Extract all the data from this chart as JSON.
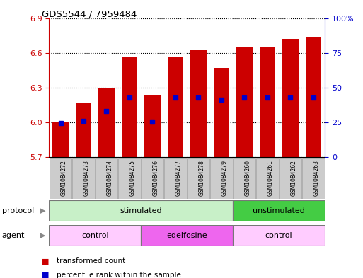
{
  "title": "GDS5544 / 7959484",
  "samples": [
    "GSM1084272",
    "GSM1084273",
    "GSM1084274",
    "GSM1084275",
    "GSM1084276",
    "GSM1084277",
    "GSM1084278",
    "GSM1084279",
    "GSM1084260",
    "GSM1084261",
    "GSM1084262",
    "GSM1084263"
  ],
  "bar_tops": [
    6.0,
    6.17,
    6.3,
    6.57,
    6.23,
    6.57,
    6.63,
    6.47,
    6.65,
    6.65,
    6.72,
    6.73
  ],
  "bar_bottom": 5.7,
  "percentile_values": [
    5.995,
    6.01,
    6.1,
    6.215,
    6.005,
    6.215,
    6.215,
    6.195,
    6.215,
    6.215,
    6.215,
    6.215
  ],
  "ylim_left": [
    5.7,
    6.9
  ],
  "yticks_left": [
    5.7,
    6.0,
    6.3,
    6.6,
    6.9
  ],
  "ylim_right": [
    0,
    100
  ],
  "yticks_right": [
    0,
    25,
    50,
    75,
    100
  ],
  "ytick_labels_right": [
    "0",
    "25",
    "50",
    "75",
    "100%"
  ],
  "bar_color": "#cc0000",
  "percentile_color": "#0000cc",
  "grid_color": "#000000",
  "protocol_groups": [
    {
      "label": "stimulated",
      "start": 0,
      "end": 8,
      "color": "#c8f0c8"
    },
    {
      "label": "unstimulated",
      "start": 8,
      "end": 12,
      "color": "#44cc44"
    }
  ],
  "agent_groups": [
    {
      "label": "control",
      "start": 0,
      "end": 4,
      "color": "#ffccff"
    },
    {
      "label": "edelfosine",
      "start": 4,
      "end": 8,
      "color": "#ee66ee"
    },
    {
      "label": "control",
      "start": 8,
      "end": 12,
      "color": "#ffccff"
    }
  ],
  "protocol_label": "protocol",
  "agent_label": "agent",
  "legend_items": [
    {
      "label": "transformed count",
      "color": "#cc0000"
    },
    {
      "label": "percentile rank within the sample",
      "color": "#0000cc"
    }
  ],
  "tick_label_color_left": "#cc0000",
  "tick_label_color_right": "#0000cc",
  "background_color": "#ffffff",
  "plot_bg_color": "#ffffff",
  "bar_width": 0.7,
  "sample_box_color": "#cccccc",
  "sample_box_edge": "#aaaaaa"
}
